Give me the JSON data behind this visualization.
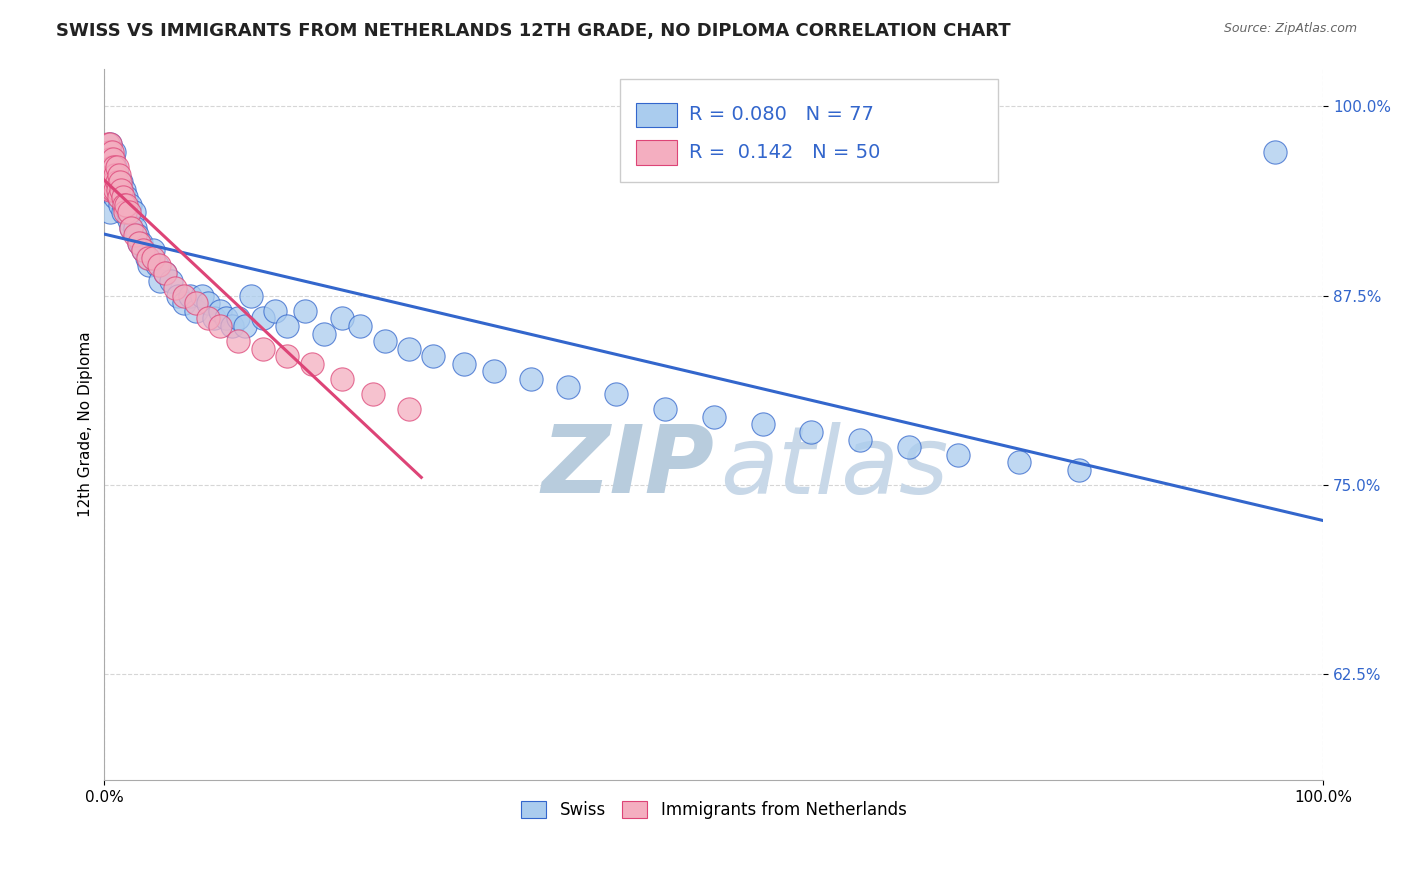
{
  "title": "SWISS VS IMMIGRANTS FROM NETHERLANDS 12TH GRADE, NO DIPLOMA CORRELATION CHART",
  "source": "Source: ZipAtlas.com",
  "ylabel": "12th Grade, No Diploma",
  "legend_swiss": "Swiss",
  "legend_netherlands": "Immigrants from Netherlands",
  "R_swiss": 0.08,
  "N_swiss": 77,
  "R_netherlands": 0.142,
  "N_netherlands": 50,
  "swiss_color": "#aaccee",
  "netherlands_color": "#f4aec0",
  "line_swiss_color": "#3366cc",
  "line_netherlands_color": "#dd4477",
  "watermark_zip": "ZIP",
  "watermark_atlas": "atlas",
  "xlim": [
    0.0,
    1.0
  ],
  "ylim": [
    0.555,
    1.025
  ],
  "yticks": [
    0.625,
    0.75,
    0.875,
    1.0
  ],
  "ytick_labels": [
    "62.5%",
    "75.0%",
    "87.5%",
    "100.0%"
  ],
  "xtick_labels": [
    "0.0%",
    "100.0%"
  ],
  "grid_color": "#cccccc",
  "background_color": "#ffffff",
  "title_fontsize": 13,
  "axis_label_fontsize": 11,
  "tick_fontsize": 11,
  "legend_fontsize": 14,
  "watermark_color": "#ccddf0",
  "watermark_fontsize": 68,
  "swiss_x": [
    0.005,
    0.005,
    0.005,
    0.005,
    0.007,
    0.007,
    0.008,
    0.008,
    0.009,
    0.009,
    0.01,
    0.01,
    0.011,
    0.012,
    0.013,
    0.013,
    0.014,
    0.015,
    0.015,
    0.016,
    0.017,
    0.018,
    0.019,
    0.02,
    0.021,
    0.022,
    0.024,
    0.025,
    0.027,
    0.028,
    0.03,
    0.032,
    0.035,
    0.037,
    0.04,
    0.043,
    0.046,
    0.05,
    0.055,
    0.06,
    0.065,
    0.07,
    0.075,
    0.08,
    0.085,
    0.09,
    0.095,
    0.1,
    0.105,
    0.11,
    0.115,
    0.12,
    0.13,
    0.14,
    0.15,
    0.165,
    0.18,
    0.195,
    0.21,
    0.23,
    0.25,
    0.27,
    0.295,
    0.32,
    0.35,
    0.38,
    0.42,
    0.46,
    0.5,
    0.54,
    0.58,
    0.62,
    0.66,
    0.7,
    0.75,
    0.8,
    0.96
  ],
  "swiss_y": [
    0.975,
    0.96,
    0.945,
    0.93,
    0.965,
    0.95,
    0.97,
    0.955,
    0.96,
    0.94,
    0.945,
    0.955,
    0.95,
    0.94,
    0.945,
    0.935,
    0.95,
    0.94,
    0.93,
    0.945,
    0.935,
    0.94,
    0.93,
    0.925,
    0.935,
    0.92,
    0.93,
    0.92,
    0.915,
    0.91,
    0.91,
    0.905,
    0.9,
    0.895,
    0.905,
    0.895,
    0.885,
    0.89,
    0.885,
    0.875,
    0.87,
    0.875,
    0.865,
    0.875,
    0.87,
    0.86,
    0.865,
    0.86,
    0.855,
    0.86,
    0.855,
    0.875,
    0.86,
    0.865,
    0.855,
    0.865,
    0.85,
    0.86,
    0.855,
    0.845,
    0.84,
    0.835,
    0.83,
    0.825,
    0.82,
    0.815,
    0.81,
    0.8,
    0.795,
    0.79,
    0.785,
    0.78,
    0.775,
    0.77,
    0.765,
    0.76,
    0.97
  ],
  "netherlands_x": [
    0.003,
    0.003,
    0.004,
    0.004,
    0.005,
    0.005,
    0.005,
    0.005,
    0.006,
    0.006,
    0.006,
    0.007,
    0.007,
    0.007,
    0.008,
    0.008,
    0.009,
    0.009,
    0.01,
    0.01,
    0.011,
    0.012,
    0.012,
    0.013,
    0.014,
    0.015,
    0.016,
    0.017,
    0.018,
    0.02,
    0.022,
    0.025,
    0.028,
    0.032,
    0.036,
    0.04,
    0.045,
    0.05,
    0.058,
    0.065,
    0.075,
    0.085,
    0.095,
    0.11,
    0.13,
    0.15,
    0.17,
    0.195,
    0.22,
    0.25
  ],
  "netherlands_y": [
    0.975,
    0.965,
    0.97,
    0.96,
    0.975,
    0.965,
    0.955,
    0.945,
    0.97,
    0.96,
    0.95,
    0.965,
    0.955,
    0.945,
    0.96,
    0.95,
    0.955,
    0.945,
    0.96,
    0.95,
    0.945,
    0.955,
    0.94,
    0.95,
    0.945,
    0.94,
    0.935,
    0.93,
    0.935,
    0.93,
    0.92,
    0.915,
    0.91,
    0.905,
    0.9,
    0.9,
    0.895,
    0.89,
    0.88,
    0.875,
    0.87,
    0.86,
    0.855,
    0.845,
    0.84,
    0.835,
    0.83,
    0.82,
    0.81,
    0.8
  ]
}
